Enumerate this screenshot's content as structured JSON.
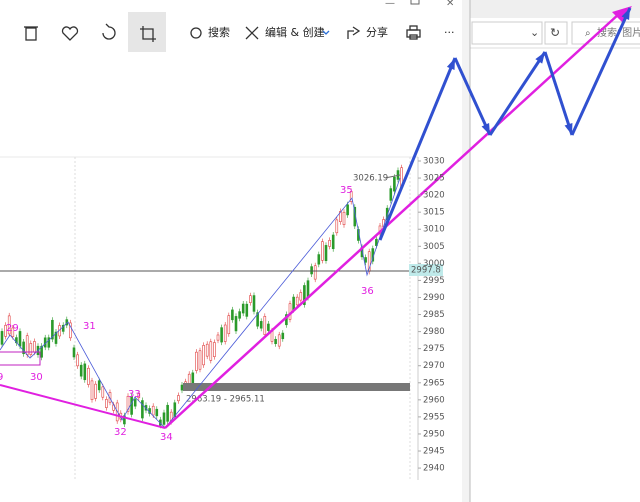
{
  "toolbar": {
    "items": [
      "搜索",
      "编辑 & 创建",
      "分享"
    ]
  },
  "chart": {
    "price_ticks": [
      "3030",
      "3025",
      "3020",
      "3015",
      "3010",
      "3005",
      "3000",
      "2995",
      "2990",
      "2985",
      "2980",
      "2975",
      "2970",
      "2965",
      "2960",
      "2955",
      "2950",
      "2945",
      "2940"
    ],
    "current_price": "2997.8",
    "high_label": "3026.19",
    "zone_label": "2963.19 - 2965.11",
    "wave_labels": [
      "9",
      "29",
      "30",
      "31",
      "32",
      "33",
      "34",
      "35",
      "36"
    ]
  },
  "browser": {
    "search_placeholder": "搜索“图片"
  }
}
